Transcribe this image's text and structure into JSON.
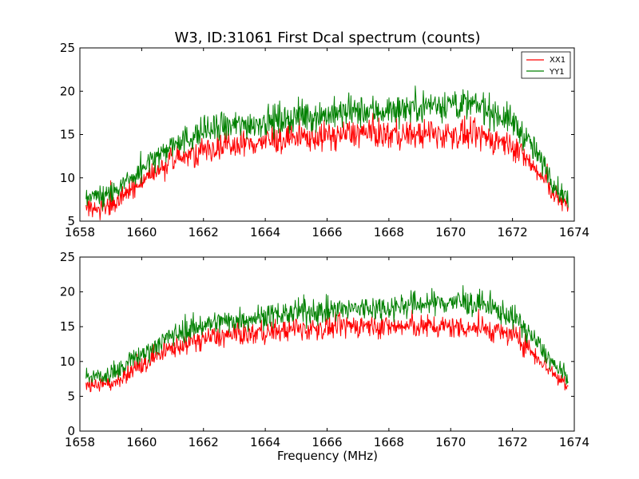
{
  "chart_data": [
    {
      "type": "line",
      "title": "W3, ID:31061 First Dcal spectrum (counts)",
      "xlabel": "",
      "ylabel": "",
      "xlim": [
        1658,
        1674
      ],
      "ylim": [
        5,
        25
      ],
      "xticks": [
        1658,
        1660,
        1662,
        1664,
        1666,
        1668,
        1670,
        1672,
        1674
      ],
      "yticks": [
        5,
        10,
        15,
        20,
        25
      ],
      "legend": {
        "position": "top-right",
        "entries": [
          "XX1",
          "YY1"
        ]
      },
      "series": [
        {
          "name": "XX1",
          "color": "#ff0000",
          "x": [
            1658.2,
            1659.0,
            1660.0,
            1661.0,
            1662.0,
            1663.0,
            1664.0,
            1665.0,
            1666.0,
            1667.0,
            1668.0,
            1669.0,
            1670.0,
            1671.0,
            1672.0,
            1672.5,
            1673.0,
            1673.5,
            1673.8
          ],
          "values": [
            6.5,
            6.8,
            9.5,
            12.0,
            13.3,
            13.8,
            14.2,
            14.6,
            14.8,
            15.2,
            15.0,
            15.0,
            15.0,
            14.8,
            13.8,
            12.0,
            9.8,
            7.5,
            6.6
          ]
        },
        {
          "name": "YY1",
          "color": "#008000",
          "x": [
            1658.2,
            1659.0,
            1660.0,
            1661.0,
            1662.0,
            1663.0,
            1664.0,
            1665.0,
            1666.0,
            1667.0,
            1668.0,
            1669.0,
            1670.0,
            1671.0,
            1672.0,
            1672.5,
            1673.0,
            1673.5,
            1673.8
          ],
          "values": [
            7.7,
            8.0,
            11.0,
            13.8,
            15.3,
            16.0,
            16.5,
            17.0,
            17.3,
            17.6,
            17.8,
            18.3,
            18.6,
            18.2,
            16.5,
            14.3,
            11.5,
            8.6,
            7.6
          ]
        }
      ]
    },
    {
      "type": "line",
      "title": "",
      "xlabel": "Frequency (MHz)",
      "ylabel": "",
      "xlim": [
        1658,
        1674
      ],
      "ylim": [
        0,
        25
      ],
      "xticks": [
        1658,
        1660,
        1662,
        1664,
        1666,
        1668,
        1670,
        1672,
        1674
      ],
      "yticks": [
        0,
        5,
        10,
        15,
        20,
        25
      ],
      "series": [
        {
          "color": "#ff0000",
          "x": [
            1658.2,
            1659.0,
            1660.0,
            1661.0,
            1662.0,
            1663.0,
            1664.0,
            1665.0,
            1666.0,
            1667.0,
            1668.0,
            1669.0,
            1670.0,
            1671.0,
            1672.0,
            1672.5,
            1673.0,
            1673.5,
            1673.8
          ],
          "values": [
            6.5,
            6.8,
            9.5,
            12.0,
            13.3,
            13.8,
            14.2,
            14.6,
            14.8,
            15.2,
            15.0,
            15.0,
            15.0,
            14.8,
            13.8,
            12.0,
            9.8,
            7.5,
            6.6
          ]
        },
        {
          "color": "#008000",
          "x": [
            1658.2,
            1659.0,
            1660.0,
            1661.0,
            1662.0,
            1663.0,
            1664.0,
            1665.0,
            1666.0,
            1667.0,
            1668.0,
            1669.0,
            1670.0,
            1671.0,
            1672.0,
            1672.5,
            1673.0,
            1673.5,
            1673.8
          ],
          "values": [
            7.7,
            8.0,
            11.0,
            13.8,
            15.3,
            16.0,
            16.5,
            17.0,
            17.3,
            17.6,
            17.8,
            18.3,
            18.6,
            18.2,
            16.5,
            14.3,
            11.5,
            8.6,
            7.6
          ]
        }
      ]
    }
  ]
}
